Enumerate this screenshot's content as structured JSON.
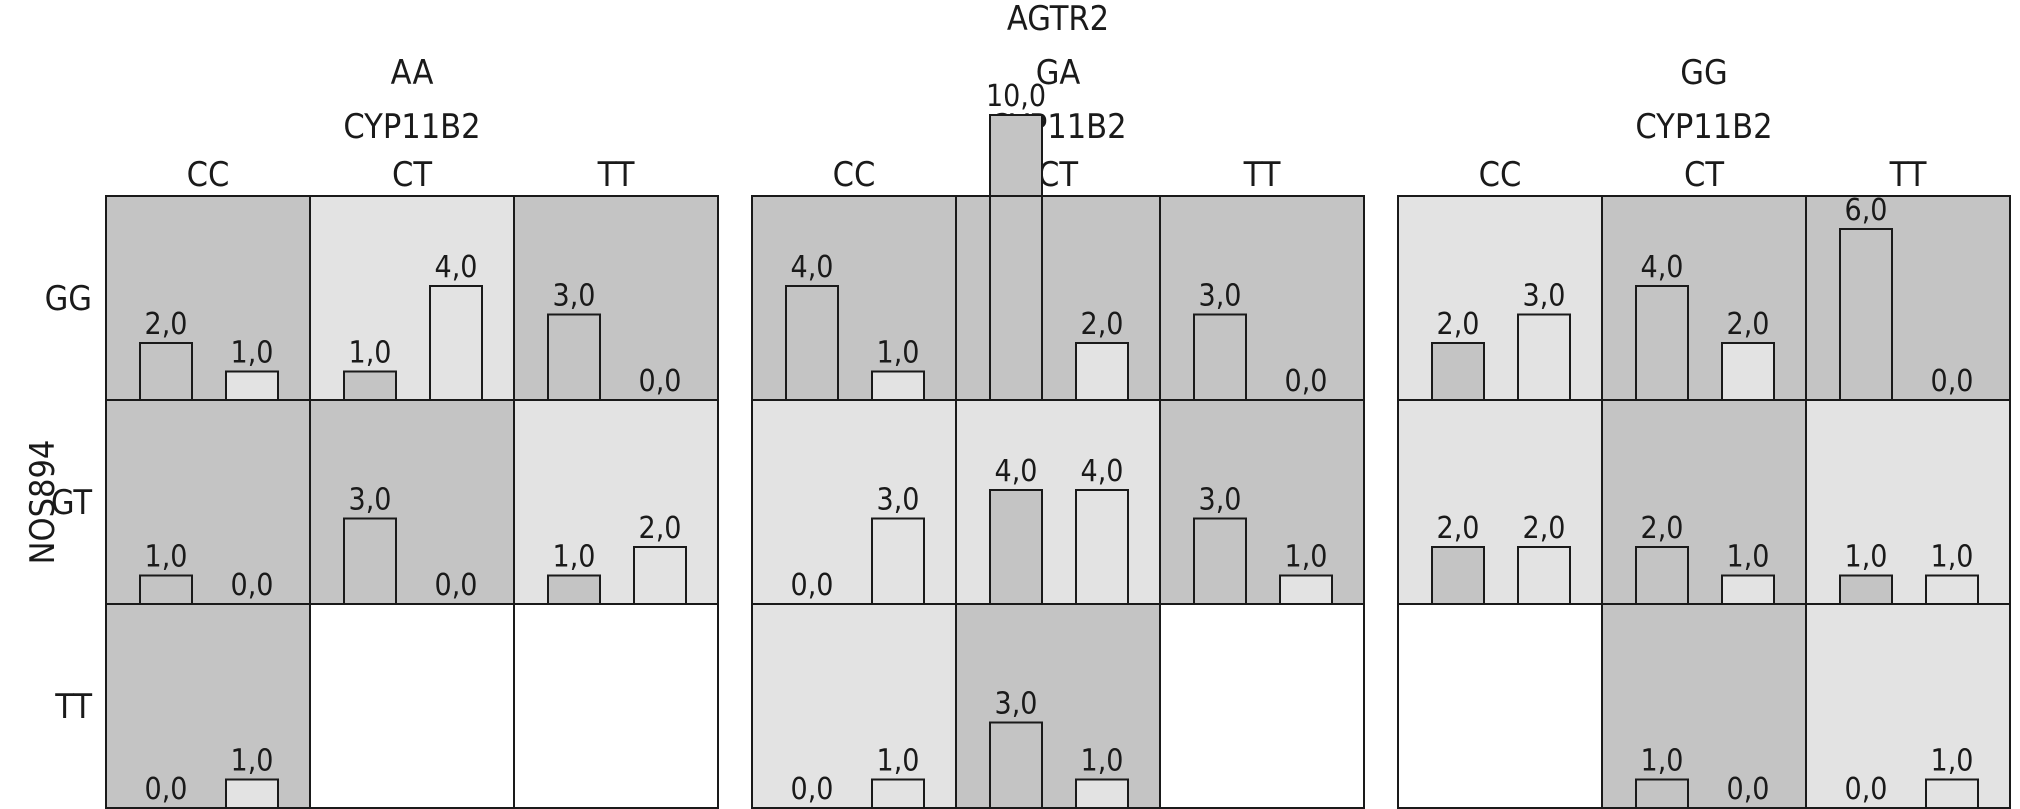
{
  "chart_data": {
    "type": "bar",
    "title": "",
    "top_factor": {
      "label": "AGTR2",
      "levels": [
        "AA",
        "GA",
        "GG"
      ]
    },
    "column_factor": {
      "label": "CYP11B2",
      "levels": [
        "CC",
        "CT",
        "TT"
      ]
    },
    "row_factor": {
      "label": "NOS894",
      "levels": [
        "GG",
        "GT",
        "TT"
      ]
    },
    "bars_per_cell": 2,
    "colors": {
      "dark": "#c4c4c4",
      "light": "#e3e3e3",
      "empty": "#ffffff",
      "edge": "#1a1a1a"
    },
    "cells": [
      {
        "agtr2": "AA",
        "cyp11b2": "CC",
        "nos894": "GG",
        "bg": "dark",
        "values": [
          2.0,
          1.0
        ],
        "labels": [
          "2,0",
          "1,0"
        ]
      },
      {
        "agtr2": "AA",
        "cyp11b2": "CT",
        "nos894": "GG",
        "bg": "light",
        "values": [
          1.0,
          4.0
        ],
        "labels": [
          "1,0",
          "4,0"
        ]
      },
      {
        "agtr2": "AA",
        "cyp11b2": "TT",
        "nos894": "GG",
        "bg": "dark",
        "values": [
          3.0,
          0.0
        ],
        "labels": [
          "3,0",
          "0,0"
        ]
      },
      {
        "agtr2": "AA",
        "cyp11b2": "CC",
        "nos894": "GT",
        "bg": "dark",
        "values": [
          1.0,
          0.0
        ],
        "labels": [
          "1,0",
          "0,0"
        ]
      },
      {
        "agtr2": "AA",
        "cyp11b2": "CT",
        "nos894": "GT",
        "bg": "dark",
        "values": [
          3.0,
          0.0
        ],
        "labels": [
          "3,0",
          "0,0"
        ]
      },
      {
        "agtr2": "AA",
        "cyp11b2": "TT",
        "nos894": "GT",
        "bg": "light",
        "values": [
          1.0,
          2.0
        ],
        "labels": [
          "1,0",
          "2,0"
        ]
      },
      {
        "agtr2": "AA",
        "cyp11b2": "CC",
        "nos894": "TT",
        "bg": "dark",
        "values": [
          0.0,
          1.0
        ],
        "labels": [
          "0,0",
          "1,0"
        ]
      },
      {
        "agtr2": "AA",
        "cyp11b2": "CT",
        "nos894": "TT",
        "bg": "empty",
        "values": [],
        "labels": []
      },
      {
        "agtr2": "AA",
        "cyp11b2": "TT",
        "nos894": "TT",
        "bg": "empty",
        "values": [],
        "labels": []
      },
      {
        "agtr2": "GA",
        "cyp11b2": "CC",
        "nos894": "GG",
        "bg": "dark",
        "values": [
          4.0,
          1.0
        ],
        "labels": [
          "4,0",
          "1,0"
        ]
      },
      {
        "agtr2": "GA",
        "cyp11b2": "CT",
        "nos894": "GG",
        "bg": "dark",
        "values": [
          10.0,
          2.0
        ],
        "labels": [
          "10,0",
          "2,0"
        ]
      },
      {
        "agtr2": "GA",
        "cyp11b2": "TT",
        "nos894": "GG",
        "bg": "dark",
        "values": [
          3.0,
          0.0
        ],
        "labels": [
          "3,0",
          "0,0"
        ]
      },
      {
        "agtr2": "GA",
        "cyp11b2": "CC",
        "nos894": "GT",
        "bg": "light",
        "values": [
          0.0,
          3.0
        ],
        "labels": [
          "0,0",
          "3,0"
        ]
      },
      {
        "agtr2": "GA",
        "cyp11b2": "CT",
        "nos894": "GT",
        "bg": "light",
        "values": [
          4.0,
          4.0
        ],
        "labels": [
          "4,0",
          "4,0"
        ]
      },
      {
        "agtr2": "GA",
        "cyp11b2": "TT",
        "nos894": "GT",
        "bg": "dark",
        "values": [
          3.0,
          1.0
        ],
        "labels": [
          "3,0",
          "1,0"
        ]
      },
      {
        "agtr2": "GA",
        "cyp11b2": "CC",
        "nos894": "TT",
        "bg": "light",
        "values": [
          0.0,
          1.0
        ],
        "labels": [
          "0,0",
          "1,0"
        ]
      },
      {
        "agtr2": "GA",
        "cyp11b2": "CT",
        "nos894": "TT",
        "bg": "dark",
        "values": [
          3.0,
          1.0
        ],
        "labels": [
          "3,0",
          "1,0"
        ]
      },
      {
        "agtr2": "GA",
        "cyp11b2": "TT",
        "nos894": "TT",
        "bg": "empty",
        "values": [],
        "labels": []
      },
      {
        "agtr2": "GG",
        "cyp11b2": "CC",
        "nos894": "GG",
        "bg": "light",
        "values": [
          2.0,
          3.0
        ],
        "labels": [
          "2,0",
          "3,0"
        ]
      },
      {
        "agtr2": "GG",
        "cyp11b2": "CT",
        "nos894": "GG",
        "bg": "dark",
        "values": [
          4.0,
          2.0
        ],
        "labels": [
          "4,0",
          "2,0"
        ]
      },
      {
        "agtr2": "GG",
        "cyp11b2": "TT",
        "nos894": "GG",
        "bg": "dark",
        "values": [
          6.0,
          0.0
        ],
        "labels": [
          "6,0",
          "0,0"
        ]
      },
      {
        "agtr2": "GG",
        "cyp11b2": "CC",
        "nos894": "GT",
        "bg": "light",
        "values": [
          2.0,
          2.0
        ],
        "labels": [
          "2,0",
          "2,0"
        ]
      },
      {
        "agtr2": "GG",
        "cyp11b2": "CT",
        "nos894": "GT",
        "bg": "dark",
        "values": [
          2.0,
          1.0
        ],
        "labels": [
          "2,0",
          "1,0"
        ]
      },
      {
        "agtr2": "GG",
        "cyp11b2": "TT",
        "nos894": "GT",
        "bg": "light",
        "values": [
          1.0,
          1.0
        ],
        "labels": [
          "1,0",
          "1,0"
        ]
      },
      {
        "agtr2": "GG",
        "cyp11b2": "CC",
        "nos894": "TT",
        "bg": "empty",
        "values": [],
        "labels": []
      },
      {
        "agtr2": "GG",
        "cyp11b2": "CT",
        "nos894": "TT",
        "bg": "dark",
        "values": [
          1.0,
          0.0
        ],
        "labels": [
          "1,0",
          "0,0"
        ]
      },
      {
        "agtr2": "GG",
        "cyp11b2": "TT",
        "nos894": "TT",
        "bg": "light",
        "values": [
          0.0,
          1.0
        ],
        "labels": [
          "0,0",
          "1,0"
        ]
      }
    ]
  }
}
